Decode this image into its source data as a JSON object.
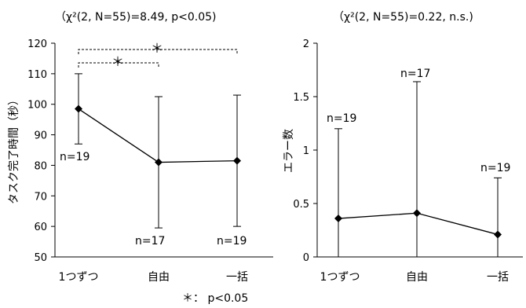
{
  "chart_data": [
    {
      "type": "line",
      "stat_label": "（χ²(2, N=55)=8.49, p<0.05)",
      "ylabel": "タスク完了時間（秒）",
      "categories": [
        "1つずつ",
        "自由",
        "一括"
      ],
      "values": [
        98.5,
        81,
        81.5
      ],
      "error_upper": [
        110,
        102.5,
        103
      ],
      "error_lower": [
        87,
        59.5,
        60
      ],
      "n_labels": [
        "n=19",
        "n=17",
        "n=19"
      ],
      "ylim": [
        50,
        120
      ],
      "yticks": [
        "50",
        "60",
        "70",
        "80",
        "90",
        "100",
        "110",
        "120"
      ],
      "significance": [
        {
          "from": 0,
          "to": 1,
          "label": "＊"
        },
        {
          "from": 0,
          "to": 2,
          "label": "＊"
        }
      ]
    },
    {
      "type": "line",
      "stat_label": "（χ²(2, N=55)=0.22, n.s.)",
      "ylabel": "エラー数",
      "categories": [
        "1つずつ",
        "自由",
        "一括"
      ],
      "values": [
        0.36,
        0.41,
        0.21
      ],
      "error_upper": [
        1.2,
        1.64,
        0.74
      ],
      "error_lower": [
        0,
        0,
        0
      ],
      "n_labels": [
        "n=19",
        "n=17",
        "n=19"
      ],
      "ylim": [
        0,
        2
      ],
      "yticks": [
        "0",
        "0.5",
        "1",
        "1.5",
        "2"
      ]
    }
  ],
  "footnote": "＊：  p<0.05"
}
